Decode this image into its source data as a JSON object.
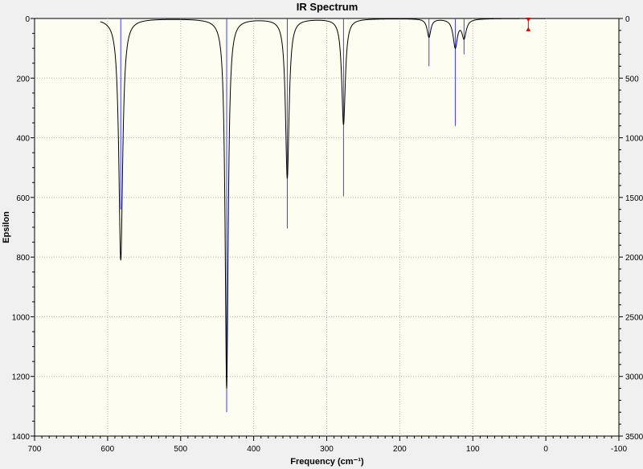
{
  "chart_data": {
    "type": "line",
    "title": "IR Spectrum",
    "xlabel": "Frequency (cm⁻¹)",
    "ylabel": "Epsilon",
    "xlim": [
      700,
      -100
    ],
    "ylim": [
      0,
      1400
    ],
    "y2lim": [
      0,
      3500
    ],
    "x_ticks": [
      700,
      600,
      500,
      400,
      300,
      200,
      100,
      0,
      -100
    ],
    "y_ticks": [
      0,
      200,
      400,
      600,
      800,
      1000,
      1200,
      1400
    ],
    "y2_ticks": [
      0,
      500,
      1000,
      1500,
      2000,
      2500,
      3000,
      3500
    ],
    "grid": true,
    "series": [
      {
        "kind": "spectrum",
        "x_range": [
          610,
          0
        ],
        "peaks": [
          {
            "x": 582,
            "epsilon": 810,
            "width": 3.2
          },
          {
            "x": 437,
            "epsilon": 1240,
            "width": 2.5
          },
          {
            "x": 354,
            "epsilon": 535,
            "width": 3.0
          },
          {
            "x": 277,
            "epsilon": 355,
            "width": 3.0
          },
          {
            "x": 160,
            "epsilon": 62,
            "width": 3.0
          },
          {
            "x": 124,
            "epsilon": 95,
            "width": 3.5
          },
          {
            "x": 112,
            "epsilon": 62,
            "width": 3.5
          }
        ]
      },
      {
        "kind": "sticks",
        "items": [
          {
            "x": 582,
            "intensity": 1600
          },
          {
            "x": 437,
            "intensity": 3300
          },
          {
            "x": 354,
            "intensity": 1760
          },
          {
            "x": 277,
            "intensity": 1490
          },
          {
            "x": 160,
            "intensity": 400
          },
          {
            "x": 124,
            "intensity": 900
          },
          {
            "x": 112,
            "intensity": 300
          }
        ]
      }
    ],
    "marker": {
      "x": 24,
      "intensity_range": [
        0,
        100
      ]
    },
    "colors": {
      "plot_background": "#fdfdf2",
      "spectrum_line": "#000000",
      "stick": "#3d3dff",
      "grid": "#b4b4b4",
      "marker": "#e00000"
    }
  }
}
